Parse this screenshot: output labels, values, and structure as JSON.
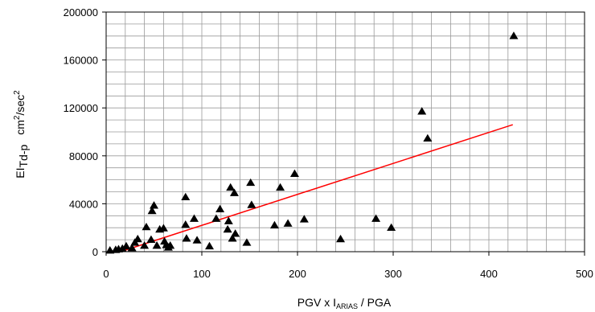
{
  "chart_data": {
    "type": "scatter",
    "xlim": [
      0,
      500
    ],
    "ylim": [
      0,
      200000
    ],
    "x_ticks": [
      0,
      100,
      200,
      300,
      400,
      500
    ],
    "y_ticks": [
      0,
      40000,
      80000,
      120000,
      160000,
      200000
    ],
    "x_tick_labels": [
      "0",
      "100",
      "200",
      "300",
      "400",
      "500"
    ],
    "y_tick_labels": [
      "0",
      "40000",
      "80000",
      "120000",
      "160000",
      "200000"
    ],
    "x_minor_step": 20,
    "y_minor_step": 10000,
    "grid": true,
    "xlabel": {
      "main": "PGV x I",
      "sub": "ARIAS",
      "tail": " / PGA"
    },
    "ylabel": {
      "main": "EI",
      "sub": "Td-p",
      "units": "cm",
      "sup": "2",
      "units_tail": "/sec",
      "sup2": "2"
    },
    "marker": "triangle",
    "marker_color": "#000000",
    "fit_line_color": "#ff0000",
    "fit_line": {
      "x": [
        15,
        425
      ],
      "y": [
        0,
        106000
      ]
    },
    "points": [
      {
        "x": 4,
        "y": 1000
      },
      {
        "x": 10,
        "y": 1500
      },
      {
        "x": 13,
        "y": 2000
      },
      {
        "x": 17,
        "y": 2500
      },
      {
        "x": 21,
        "y": 4500
      },
      {
        "x": 27,
        "y": 3000
      },
      {
        "x": 30,
        "y": 7500
      },
      {
        "x": 33,
        "y": 10500
      },
      {
        "x": 40,
        "y": 5000
      },
      {
        "x": 42,
        "y": 20500
      },
      {
        "x": 47,
        "y": 10000
      },
      {
        "x": 48,
        "y": 34000
      },
      {
        "x": 50,
        "y": 38500
      },
      {
        "x": 53,
        "y": 5000
      },
      {
        "x": 56,
        "y": 18500
      },
      {
        "x": 60,
        "y": 19500
      },
      {
        "x": 61,
        "y": 8500
      },
      {
        "x": 63,
        "y": 5500
      },
      {
        "x": 65,
        "y": 3500
      },
      {
        "x": 67,
        "y": 5000
      },
      {
        "x": 83,
        "y": 45500
      },
      {
        "x": 83,
        "y": 22500
      },
      {
        "x": 84,
        "y": 11000
      },
      {
        "x": 92,
        "y": 27500
      },
      {
        "x": 95,
        "y": 9500
      },
      {
        "x": 108,
        "y": 4500
      },
      {
        "x": 115,
        "y": 27500
      },
      {
        "x": 119,
        "y": 35500
      },
      {
        "x": 127,
        "y": 18500
      },
      {
        "x": 128,
        "y": 25500
      },
      {
        "x": 130,
        "y": 53500
      },
      {
        "x": 132,
        "y": 11000
      },
      {
        "x": 134,
        "y": 49000
      },
      {
        "x": 135,
        "y": 15000
      },
      {
        "x": 147,
        "y": 7500
      },
      {
        "x": 151,
        "y": 57500
      },
      {
        "x": 152,
        "y": 39000
      },
      {
        "x": 176,
        "y": 22000
      },
      {
        "x": 182,
        "y": 53500
      },
      {
        "x": 190,
        "y": 23500
      },
      {
        "x": 197,
        "y": 65000
      },
      {
        "x": 207,
        "y": 27000
      },
      {
        "x": 245,
        "y": 10500
      },
      {
        "x": 282,
        "y": 27500
      },
      {
        "x": 298,
        "y": 20000
      },
      {
        "x": 330,
        "y": 117000
      },
      {
        "x": 336,
        "y": 94500
      },
      {
        "x": 426,
        "y": 180000
      }
    ]
  }
}
